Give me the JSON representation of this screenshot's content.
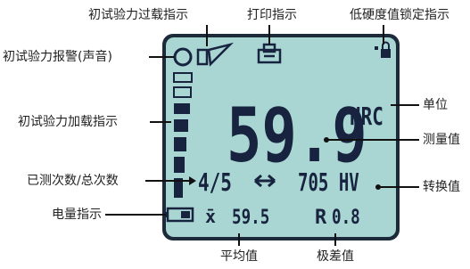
{
  "annotations": {
    "top": [
      "初试验力过载指示",
      "打印指示",
      "低硬度值锁定指示"
    ],
    "left": [
      "初试验力报警(声音)",
      "初试验力加载指示",
      "已测次数/总次数",
      "电量指示"
    ],
    "right": [
      "单位",
      "测量值",
      "转换值"
    ],
    "bottom": [
      "平均值",
      "极差值"
    ]
  },
  "display": {
    "measurement": "59.9",
    "unit": "HRC",
    "count": "4/5",
    "conversion": "705 HV",
    "average_symbol": "x̄",
    "average": "59.5",
    "range_symbol": "R",
    "range": "0.8"
  }
}
